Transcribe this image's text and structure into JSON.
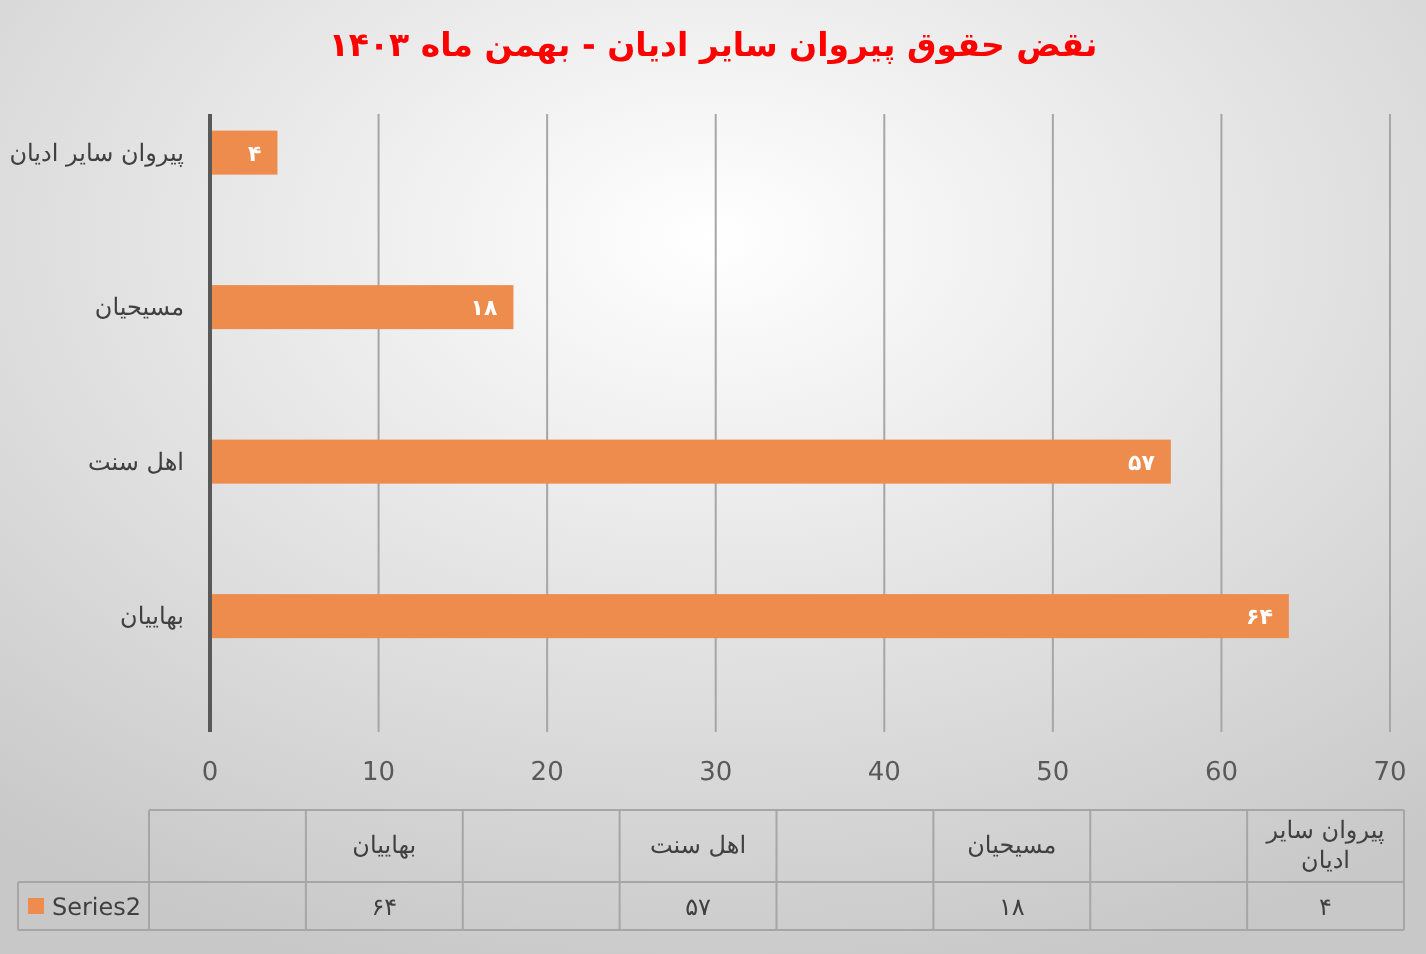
{
  "chart_data": {
    "type": "bar",
    "orientation": "horizontal",
    "title": "نقض حقوق پیروان سایر ادیان - بهمن ماه ۱۴۰۳",
    "categories": [
      "پیروان سایر ادیان",
      null,
      "مسیحیان",
      null,
      "اهل سنت",
      null,
      "بهاییان",
      null
    ],
    "series": [
      {
        "name": "Series2",
        "color": "#ed8c4d",
        "values": [
          4,
          null,
          18,
          null,
          57,
          null,
          64,
          null
        ],
        "value_labels": [
          "۴",
          null,
          "۱۸",
          null,
          "۵۷",
          null,
          "۶۴",
          null
        ]
      }
    ],
    "xlim": [
      0,
      70
    ],
    "xticks": [
      0,
      10,
      20,
      30,
      40,
      50,
      60,
      70
    ],
    "grid": "x",
    "legend": "bottom"
  }
}
